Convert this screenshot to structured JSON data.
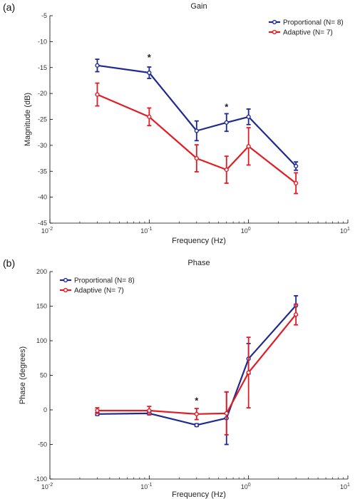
{
  "figure": {
    "panels": [
      {
        "label": "(a)",
        "title": "Gain",
        "xlabel": "Frequency (Hz)",
        "ylabel": "Magnitude (dB)",
        "legend": "top-right",
        "colors": {
          "proportional": "#1f2a8f",
          "adaptive": "#e31b23"
        }
      },
      {
        "label": "(b)",
        "title": "Phase",
        "xlabel": "Frequency (Hz)",
        "ylabel": "Phase (degrees)",
        "legend": "top-left",
        "colors": {
          "proportional": "#1f2a8f",
          "adaptive": "#e31b23"
        }
      }
    ]
  },
  "chart_data": [
    {
      "type": "line",
      "title": "Gain",
      "xlabel": "Frequency (Hz)",
      "ylabel": "Magnitude (dB)",
      "xscale": "log",
      "xlim": [
        0.01,
        10
      ],
      "ylim": [
        -45,
        -5
      ],
      "xticks": [
        0.01,
        0.1,
        1,
        10
      ],
      "xtick_labels": [
        {
          "base": "10",
          "exp": "-2"
        },
        {
          "base": "10",
          "exp": "-1"
        },
        {
          "base": "10",
          "exp": "0"
        },
        {
          "base": "10",
          "exp": "1"
        }
      ],
      "yticks": [
        -45,
        -40,
        -35,
        -30,
        -25,
        -20,
        -15,
        -10,
        -5
      ],
      "ytick_labels": [
        "-45",
        "-40",
        "-35",
        "-30",
        "-25",
        "-20",
        "-15",
        "-10",
        "-5"
      ],
      "grid": false,
      "legend_position": "top-right",
      "series": [
        {
          "name": "Proportional (N= 8)",
          "color": "#1f2a8f",
          "x": [
            0.03,
            0.1,
            0.3,
            0.6,
            1,
            3
          ],
          "y": [
            -14.6,
            -16.0,
            -27.2,
            -25.6,
            -24.5,
            -34.0
          ],
          "err": [
            1.2,
            1.1,
            1.9,
            1.7,
            1.5,
            0.8
          ]
        },
        {
          "name": "Adaptive (N= 7)",
          "color": "#e31b23",
          "x": [
            0.03,
            0.1,
            0.3,
            0.6,
            1,
            3
          ],
          "y": [
            -20.2,
            -24.5,
            -32.5,
            -34.7,
            -30.2,
            -37.3
          ],
          "err": [
            2.2,
            1.7,
            2.6,
            2.6,
            3.6,
            2.0
          ]
        }
      ],
      "annotations": [
        {
          "text": "*",
          "x": 0.1,
          "y": -13.0
        },
        {
          "text": "*",
          "x": 0.6,
          "y": -22.5
        }
      ]
    },
    {
      "type": "line",
      "title": "Phase",
      "xlabel": "Frequency (Hz)",
      "ylabel": "Phase (degrees)",
      "xscale": "log",
      "xlim": [
        0.01,
        10
      ],
      "ylim": [
        -100,
        200
      ],
      "xticks": [
        0.01,
        0.1,
        1,
        10
      ],
      "xtick_labels": [
        {
          "base": "10",
          "exp": "-2"
        },
        {
          "base": "10",
          "exp": "-1"
        },
        {
          "base": "10",
          "exp": "0"
        },
        {
          "base": "10",
          "exp": "1"
        }
      ],
      "yticks": [
        -100,
        -50,
        0,
        50,
        100,
        150,
        200
      ],
      "ytick_labels": [
        "-100",
        "-50",
        "0",
        "50",
        "100",
        "150",
        "200"
      ],
      "grid": false,
      "legend_position": "top-left",
      "series": [
        {
          "name": "Proportional (N= 8)",
          "color": "#1f2a8f",
          "x": [
            0.03,
            0.1,
            0.3,
            0.6,
            1,
            3
          ],
          "y": [
            -6,
            -5,
            -22,
            -12,
            74,
            151
          ],
          "err": [
            2,
            2,
            2,
            38,
            22,
            14
          ]
        },
        {
          "name": "Adaptive (N= 7)",
          "color": "#e31b23",
          "x": [
            0.03,
            0.1,
            0.3,
            0.6,
            1,
            3
          ],
          "y": [
            -1,
            -1,
            -6,
            -5,
            54,
            138
          ],
          "err": [
            4,
            6,
            8,
            31,
            51,
            15
          ]
        }
      ],
      "annotations": [
        {
          "text": "*",
          "x": 0.3,
          "y": 14
        }
      ]
    }
  ]
}
